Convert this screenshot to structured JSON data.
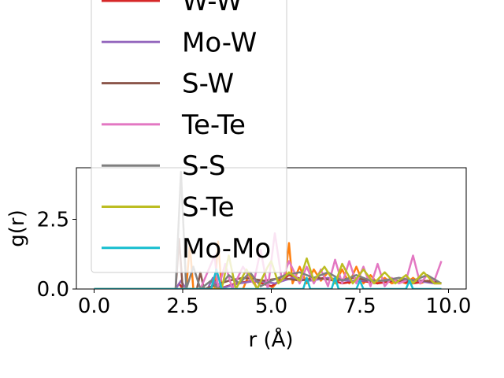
{
  "chart_data": {
    "type": "line",
    "xlabel": "r (Å)",
    "ylabel": "g(r)",
    "xlim": [
      -0.5,
      10.5
    ],
    "ylim": [
      0.0,
      4.35
    ],
    "xticks": [
      "0.0",
      "2.5",
      "5.0",
      "7.5",
      "10.0"
    ],
    "yticks": [
      "0.0",
      "2.5"
    ],
    "legend_location": "upper left (overflowing above the plot area)",
    "series": [
      {
        "name": "W-W",
        "color": "#d62728",
        "x": [
          0,
          2.3,
          2.4,
          2.5,
          3.0,
          3.3,
          3.4,
          3.5,
          4.0,
          4.5,
          5.0,
          5.5,
          6.0,
          6.5,
          7.0,
          7.5,
          8.0,
          8.5,
          9.0,
          9.5,
          9.8
        ],
        "y": [
          0,
          0,
          0.2,
          0,
          0,
          0,
          0.3,
          0,
          0.2,
          0.3,
          0.1,
          0.5,
          0.3,
          0.4,
          0.2,
          0.3,
          0.2,
          0.3,
          0.2,
          0.3,
          0.2
        ]
      },
      {
        "name": "Mo-W",
        "color": "#9467bd",
        "x": [
          0,
          2.3,
          2.45,
          2.6,
          3.2,
          3.35,
          3.5,
          4.1,
          4.6,
          5.1,
          5.6,
          6.1,
          6.6,
          7.1,
          7.6,
          8.1,
          8.6,
          9.1,
          9.6,
          9.8
        ],
        "y": [
          0,
          0,
          0.3,
          0,
          0,
          0.4,
          0,
          0.2,
          0.3,
          0.2,
          0.4,
          0.3,
          0.4,
          0.3,
          0.3,
          0.3,
          0.4,
          0.3,
          0.2,
          0.2
        ]
      },
      {
        "name": "S-W",
        "color": "#8c564b",
        "x": [
          0,
          2.3,
          2.4,
          2.5,
          2.9,
          3.0,
          3.1,
          3.8,
          4.2,
          4.8,
          5.3,
          5.8,
          6.3,
          6.8,
          7.3,
          7.8,
          8.3,
          8.8,
          9.3,
          9.8
        ],
        "y": [
          0,
          0,
          1.8,
          0,
          0,
          0.6,
          0,
          0.3,
          0.4,
          0.3,
          0.4,
          0.3,
          0.4,
          0.3,
          0.4,
          0.3,
          0.3,
          0.3,
          0.3,
          0.2
        ]
      },
      {
        "name": "Te-Te",
        "color": "#e377c2",
        "x": [
          0,
          2.3,
          2.5,
          3.0,
          3.4,
          3.5,
          3.7,
          3.9,
          4.2,
          4.5,
          4.7,
          4.9,
          5.1,
          5.3,
          5.5,
          5.8,
          6.0,
          6.2,
          6.4,
          6.6,
          6.8,
          7.0,
          7.2,
          7.4,
          7.6,
          7.8,
          8.0,
          8.2,
          8.4,
          8.6,
          8.8,
          9.0,
          9.2,
          9.4,
          9.6,
          9.8
        ],
        "y": [
          0,
          0,
          0,
          0,
          1.2,
          0,
          0.9,
          0,
          0.8,
          0.2,
          1.4,
          0,
          2.0,
          0.3,
          1.0,
          0.2,
          0.8,
          0.2,
          0.7,
          0.1,
          1.05,
          0.2,
          1.0,
          0.2,
          0.8,
          0.1,
          0.9,
          0.1,
          0.4,
          0.2,
          0.3,
          1.2,
          0.2,
          0.5,
          0.3,
          1.0
        ]
      },
      {
        "name": "S-S",
        "color": "#7f7f7f",
        "x": [
          0,
          2.3,
          2.45,
          2.6,
          2.8,
          3.0,
          3.3,
          3.5,
          3.8,
          4.1,
          4.4,
          4.7,
          5.0,
          5.4,
          5.8,
          6.2,
          6.6,
          7.0,
          7.4,
          7.8,
          8.2,
          8.6,
          9.0,
          9.4,
          9.8
        ],
        "y": [
          0,
          0,
          4.2,
          0,
          0.8,
          0,
          0.3,
          0,
          0.5,
          0.2,
          0.6,
          0.1,
          0.3,
          0.5,
          0.6,
          0.4,
          0.6,
          0.3,
          0.5,
          0.3,
          0.3,
          0.4,
          0.3,
          0.5,
          0.2
        ]
      },
      {
        "name": "S-Te",
        "color": "#bcbd22",
        "x": [
          0,
          2.3,
          3.0,
          3.6,
          3.8,
          4.0,
          4.3,
          4.6,
          4.9,
          5.0,
          5.2,
          5.5,
          5.8,
          6.0,
          6.2,
          6.5,
          6.8,
          7.0,
          7.3,
          7.6,
          7.9,
          8.2,
          8.5,
          8.8,
          9.0,
          9.3,
          9.6,
          9.8
        ],
        "y": [
          0,
          0,
          0,
          0,
          1.2,
          0,
          0.7,
          0,
          0.8,
          1.0,
          0.2,
          0.6,
          0.3,
          1.1,
          0.3,
          0.8,
          0.2,
          0.9,
          0.2,
          0.7,
          0.2,
          0.6,
          0.2,
          0.5,
          0.2,
          0.6,
          0.2,
          0.2
        ]
      },
      {
        "name": "Mo-Mo",
        "color": "#17becf",
        "x": [
          0,
          3.3,
          3.45,
          3.6,
          5.9,
          6.0,
          6.1,
          6.7,
          6.8,
          6.9,
          7.4,
          7.5,
          7.6,
          8.8,
          8.9,
          9.0,
          9.8
        ],
        "y": [
          0,
          0,
          0.7,
          0,
          0,
          0.4,
          0,
          0,
          0.4,
          0,
          0,
          0.3,
          0,
          0,
          0.3,
          0,
          0
        ]
      }
    ],
    "extra_series_without_legend": [
      {
        "color": "#ff7f0e",
        "x": [
          0,
          2.3,
          2.4,
          2.6,
          2.7,
          2.8,
          3.0,
          3.4,
          3.5,
          3.6,
          4.2,
          4.4,
          4.6,
          5.0,
          5.2,
          5.4,
          5.5,
          5.6,
          5.8,
          6.0,
          6.2,
          6.4,
          6.6,
          6.8,
          7.0,
          7.2,
          7.4,
          7.6,
          7.8,
          8.0,
          8.2,
          8.4,
          8.6,
          8.8,
          9.0,
          9.2,
          9.4,
          9.6,
          9.8
        ],
        "y": [
          0,
          0,
          0,
          0,
          1.6,
          0,
          0,
          0,
          1.7,
          0,
          0,
          0.6,
          0,
          0,
          0.3,
          0.5,
          1.65,
          0.2,
          0.8,
          0.2,
          0.7,
          0.3,
          0.6,
          0.2,
          0.7,
          0.2,
          0.8,
          0.2,
          0.5,
          0.2,
          0.4,
          0.2,
          0.3,
          0.2,
          0.4,
          0.2,
          0.3,
          0.2,
          0.2
        ]
      }
    ]
  }
}
